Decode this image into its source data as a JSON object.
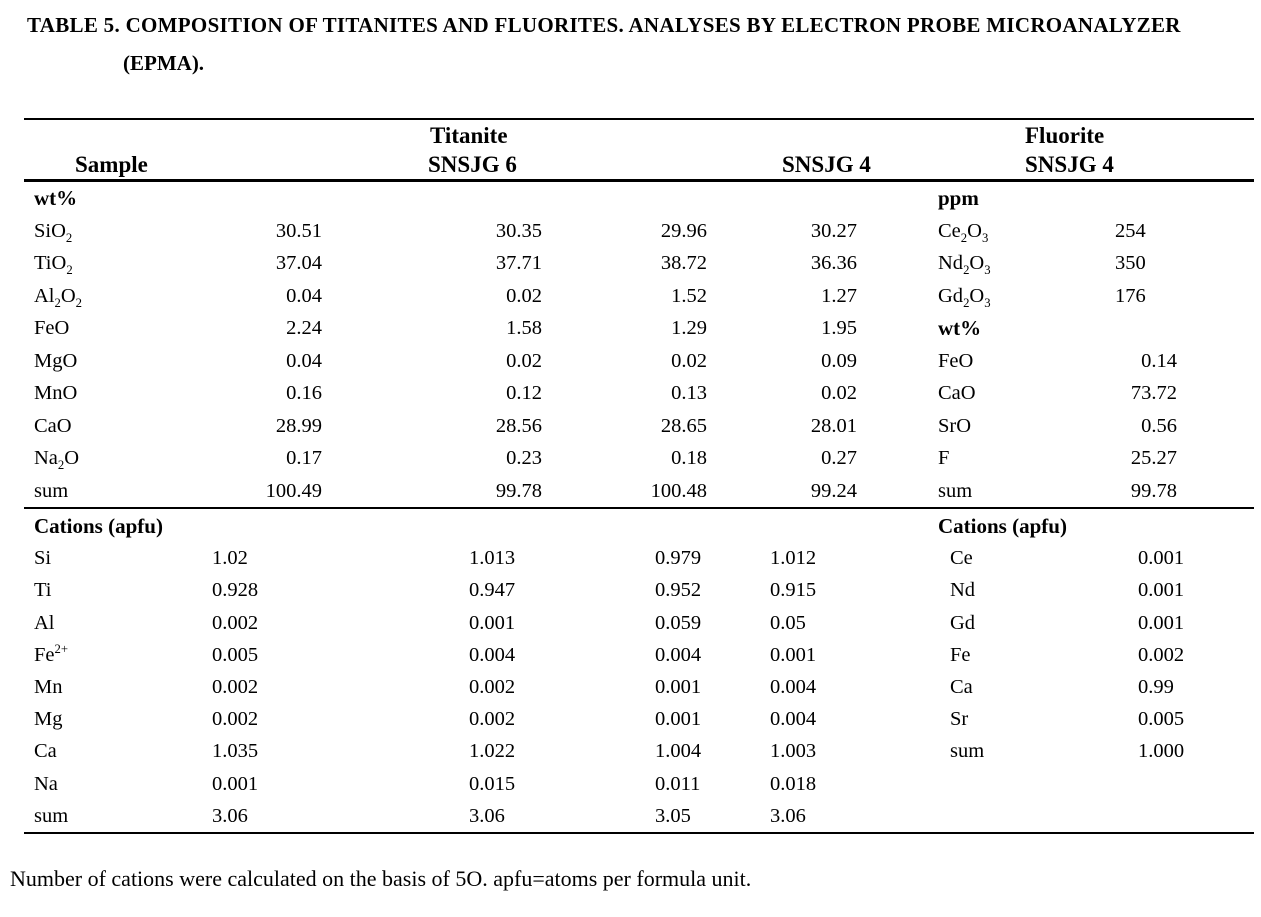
{
  "page": {
    "title_line1": "TABLE 5. COMPOSITION OF TITANITES AND FLUORITES. ANALYSES BY ELECTRON PROBE MICROANALYZER",
    "title_line2": "(EPMA).",
    "footnote": "Number of cations were calculated on the basis of 5O. apfu=atoms per formula unit."
  },
  "colors": {
    "text": "#000000",
    "background": "#ffffff",
    "rule": "#000000"
  },
  "header": {
    "sample_label": "Sample",
    "titanite_label": "Titanite",
    "fluorite_label": "Fluorite",
    "titanite_sample1": "SNSJG 6",
    "titanite_sample2": "SNSJG 4",
    "fluorite_sample": "SNSJG 4"
  },
  "table": {
    "wt_rows": [
      {
        "label": [
          [
            "t",
            "wt%"
          ]
        ],
        "bold": true,
        "right": {
          "label": [
            [
              "t",
              "ppm"
            ]
          ],
          "bold": true
        }
      },
      {
        "label": [
          [
            "t",
            "SiO"
          ],
          [
            "sub",
            "2"
          ]
        ],
        "values": [
          "30.51",
          "30.35",
          "29.96",
          "30.27"
        ],
        "right": {
          "label": [
            [
              "t",
              "Ce"
            ],
            [
              "sub",
              "2"
            ],
            [
              "t",
              "O"
            ],
            [
              "sub",
              "3"
            ]
          ],
          "value": "254",
          "type": "ppm"
        }
      },
      {
        "label": [
          [
            "t",
            "TiO"
          ],
          [
            "sub",
            "2"
          ]
        ],
        "values": [
          "37.04",
          "37.71",
          "38.72",
          "36.36"
        ],
        "right": {
          "label": [
            [
              "t",
              "Nd"
            ],
            [
              "sub",
              "2"
            ],
            [
              "t",
              "O"
            ],
            [
              "sub",
              "3"
            ]
          ],
          "value": "350",
          "type": "ppm"
        }
      },
      {
        "label": [
          [
            "t",
            "Al"
          ],
          [
            "sub",
            "2"
          ],
          [
            "t",
            "O"
          ],
          [
            "sub",
            "2"
          ]
        ],
        "values": [
          "0.04",
          "0.02",
          "1.52",
          "1.27"
        ],
        "right": {
          "label": [
            [
              "t",
              "Gd"
            ],
            [
              "sub",
              "2"
            ],
            [
              "t",
              "O"
            ],
            [
              "sub",
              "3"
            ]
          ],
          "value": "176",
          "type": "ppm"
        }
      },
      {
        "label": [
          [
            "t",
            "FeO"
          ]
        ],
        "values": [
          "2.24",
          "1.58",
          "1.29",
          "1.95"
        ],
        "right": {
          "label": [
            [
              "t",
              "wt%"
            ]
          ],
          "bold": true
        }
      },
      {
        "label": [
          [
            "t",
            "MgO"
          ]
        ],
        "values": [
          "0.04",
          "0.02",
          "0.02",
          "0.09"
        ],
        "right": {
          "label": [
            [
              "t",
              "FeO"
            ]
          ],
          "value": "0.14",
          "type": "wt"
        }
      },
      {
        "label": [
          [
            "t",
            "MnO"
          ]
        ],
        "values": [
          "0.16",
          "0.12",
          "0.13",
          "0.02"
        ],
        "right": {
          "label": [
            [
              "t",
              "CaO"
            ]
          ],
          "value": "73.72",
          "type": "wt"
        }
      },
      {
        "label": [
          [
            "t",
            "CaO"
          ]
        ],
        "values": [
          "28.99",
          "28.56",
          "28.65",
          "28.01"
        ],
        "right": {
          "label": [
            [
              "t",
              "SrO"
            ]
          ],
          "value": "0.56",
          "type": "wt"
        }
      },
      {
        "label": [
          [
            "t",
            "Na"
          ],
          [
            "sub",
            "2"
          ],
          [
            "t",
            "O"
          ]
        ],
        "values": [
          "0.17",
          "0.23",
          "0.18",
          "0.27"
        ],
        "right": {
          "label": [
            [
              "t",
              "F"
            ]
          ],
          "value": "25.27",
          "type": "wt"
        }
      },
      {
        "label": [
          [
            "t",
            "sum"
          ]
        ],
        "values": [
          "100.49",
          "99.78",
          "100.48",
          "99.24"
        ],
        "right": {
          "label": [
            [
              "t",
              "sum"
            ]
          ],
          "value": "99.78",
          "type": "wt"
        }
      }
    ],
    "cation_rows": [
      {
        "label": [
          [
            "t",
            "Cations (apfu)"
          ]
        ],
        "bold": true,
        "right": {
          "label": [
            [
              "t",
              "Cations (apfu)"
            ]
          ],
          "bold": true
        }
      },
      {
        "label": [
          [
            "t",
            "Si"
          ]
        ],
        "values": [
          "1.02",
          "1.013",
          "0.979",
          "1.012"
        ],
        "right": {
          "label": [
            [
              "t",
              "Ce"
            ]
          ],
          "value": "0.001",
          "type": "cat"
        }
      },
      {
        "label": [
          [
            "t",
            "Ti"
          ]
        ],
        "values": [
          "0.928",
          "0.947",
          "0.952",
          "0.915"
        ],
        "right": {
          "label": [
            [
              "t",
              "Nd"
            ]
          ],
          "value": "0.001",
          "type": "cat"
        }
      },
      {
        "label": [
          [
            "t",
            "Al"
          ]
        ],
        "values": [
          "0.002",
          "0.001",
          "0.059",
          "0.05"
        ],
        "right": {
          "label": [
            [
              "t",
              "Gd"
            ]
          ],
          "value": "0.001",
          "type": "cat"
        }
      },
      {
        "label": [
          [
            "t",
            "Fe"
          ],
          [
            "sup",
            "2+"
          ]
        ],
        "values": [
          "0.005",
          "0.004",
          "0.004",
          "0.001"
        ],
        "right": {
          "label": [
            [
              "t",
              "Fe"
            ]
          ],
          "value": "0.002",
          "type": "cat"
        }
      },
      {
        "label": [
          [
            "t",
            "Mn"
          ]
        ],
        "values": [
          "0.002",
          "0.002",
          "0.001",
          "0.004"
        ],
        "right": {
          "label": [
            [
              "t",
              "Ca"
            ]
          ],
          "value": "0.99",
          "type": "cat"
        }
      },
      {
        "label": [
          [
            "t",
            "Mg"
          ]
        ],
        "values": [
          "0.002",
          "0.002",
          "0.001",
          "0.004"
        ],
        "right": {
          "label": [
            [
              "t",
              "Sr"
            ]
          ],
          "value": "0.005",
          "type": "cat"
        }
      },
      {
        "label": [
          [
            "t",
            "Ca"
          ]
        ],
        "values": [
          "1.035",
          "1.022",
          "1.004",
          "1.003"
        ],
        "right": {
          "label": [
            [
              "t",
              "sum"
            ]
          ],
          "value": "1.000",
          "type": "cat"
        }
      },
      {
        "label": [
          [
            "t",
            "Na"
          ]
        ],
        "values": [
          "0.001",
          "0.015",
          "0.011",
          "0.018"
        ]
      },
      {
        "label": [
          [
            "t",
            "sum"
          ]
        ],
        "values": [
          "3.06",
          "3.06",
          "3.05",
          "3.06"
        ]
      }
    ]
  }
}
